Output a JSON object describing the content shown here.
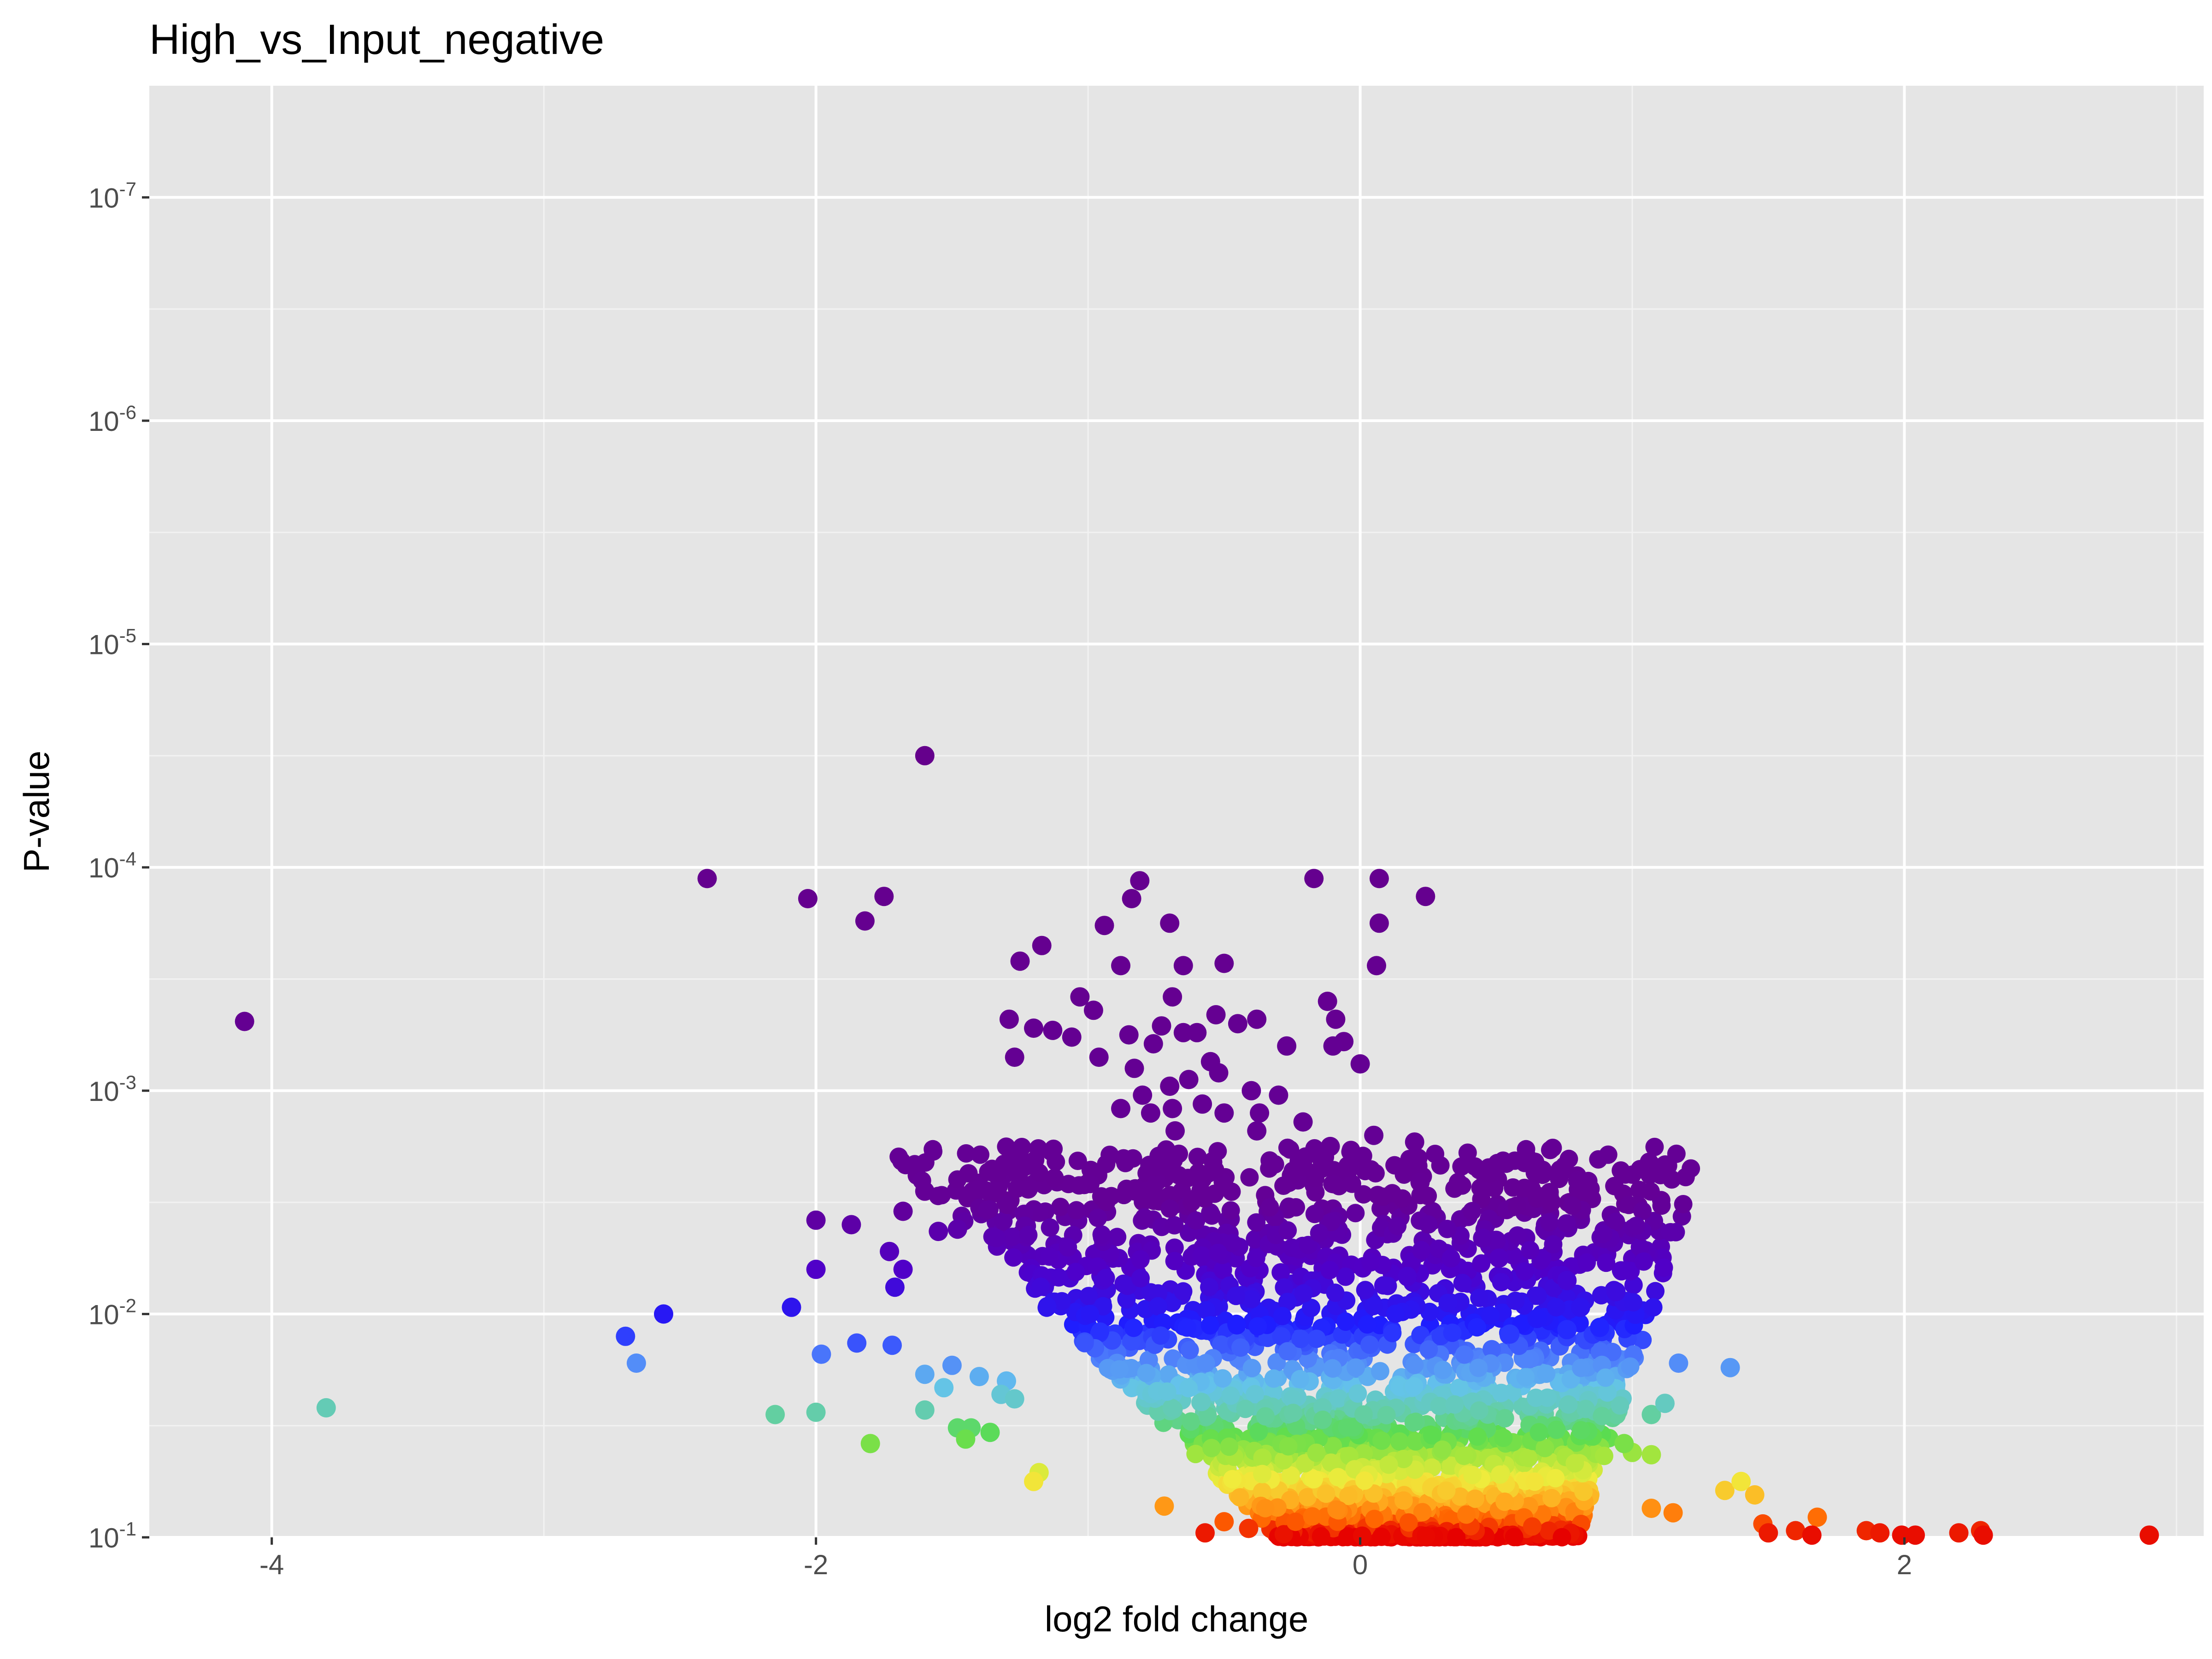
{
  "chart_data": {
    "type": "scatter",
    "title": "High_vs_Input_negative",
    "xlabel": "log2 fold change",
    "ylabel": "P-value",
    "xlim": [
      -4.45,
      3.1
    ],
    "ylim": [
      1.0,
      7.5
    ],
    "y_scale": "log10 reversed (-log10 P)",
    "x_ticks": [
      {
        "value": -4,
        "label": "-4"
      },
      {
        "value": -2,
        "label": "-2"
      },
      {
        "value": 0,
        "label": "0"
      },
      {
        "value": 2,
        "label": "2"
      }
    ],
    "y_ticks": [
      {
        "value": 1,
        "base": "10",
        "exp": "-1"
      },
      {
        "value": 2,
        "base": "10",
        "exp": "-2"
      },
      {
        "value": 3,
        "base": "10",
        "exp": "-3"
      },
      {
        "value": 4,
        "base": "10",
        "exp": "-4"
      },
      {
        "value": 5,
        "base": "10",
        "exp": "-5"
      },
      {
        "value": 6,
        "base": "10",
        "exp": "-6"
      },
      {
        "value": 7,
        "base": "10",
        "exp": "-7"
      }
    ],
    "grid": true,
    "legend": "none",
    "color_scale": "rainbow by significance (red = least significant, purple = most significant)",
    "colors": {
      "panel_background": "#e5e5e5",
      "grid_major": "#ffffff",
      "grid_minor": "#f2f2f2",
      "tick_text": "#4d4d4d"
    },
    "series": [
      {
        "values": [
          {
            "x": -1.6,
            "y": 4.5
          },
          {
            "x": -4.1,
            "y": 3.31
          },
          {
            "x": -2.4,
            "y": 3.95
          },
          {
            "x": -2.03,
            "y": 3.86
          },
          {
            "x": -1.75,
            "y": 3.87
          },
          {
            "x": -1.82,
            "y": 3.76
          },
          {
            "x": -1.17,
            "y": 3.65
          },
          {
            "x": -0.94,
            "y": 3.74
          },
          {
            "x": -0.81,
            "y": 3.94
          },
          {
            "x": -0.84,
            "y": 3.86
          },
          {
            "x": -0.7,
            "y": 3.75
          },
          {
            "x": -0.17,
            "y": 3.95
          },
          {
            "x": 0.07,
            "y": 3.95
          },
          {
            "x": 0.24,
            "y": 3.87
          },
          {
            "x": 0.07,
            "y": 3.75
          },
          {
            "x": 0.06,
            "y": 3.56
          },
          {
            "x": -0.5,
            "y": 3.57
          },
          {
            "x": -0.65,
            "y": 3.56
          },
          {
            "x": -1.25,
            "y": 3.58
          },
          {
            "x": -0.88,
            "y": 3.56
          },
          {
            "x": -0.69,
            "y": 3.42
          },
          {
            "x": -0.12,
            "y": 3.4
          },
          {
            "x": -1.03,
            "y": 3.42
          },
          {
            "x": -0.98,
            "y": 3.36
          },
          {
            "x": -0.53,
            "y": 3.34
          },
          {
            "x": -0.38,
            "y": 3.32
          },
          {
            "x": -0.65,
            "y": 3.26
          },
          {
            "x": -0.76,
            "y": 3.21
          },
          {
            "x": -0.09,
            "y": 3.32
          },
          {
            "x": -0.06,
            "y": 3.22
          },
          {
            "x": -1.29,
            "y": 3.32
          },
          {
            "x": -1.2,
            "y": 3.28
          },
          {
            "x": -1.13,
            "y": 3.27
          },
          {
            "x": -1.06,
            "y": 3.24
          },
          {
            "x": -0.85,
            "y": 3.25
          },
          {
            "x": -0.73,
            "y": 3.29
          },
          {
            "x": -0.6,
            "y": 3.26
          },
          {
            "x": -0.45,
            "y": 3.3
          },
          {
            "x": -0.27,
            "y": 3.2
          },
          {
            "x": -0.1,
            "y": 3.2
          },
          {
            "x": -1.27,
            "y": 3.15
          },
          {
            "x": -0.96,
            "y": 3.15
          },
          {
            "x": -0.55,
            "y": 3.13
          },
          {
            "x": 0.0,
            "y": 3.12
          },
          {
            "x": -0.3,
            "y": 2.98
          },
          {
            "x": -0.8,
            "y": 2.98
          },
          {
            "x": -0.58,
            "y": 2.94
          },
          {
            "x": -0.69,
            "y": 2.92
          },
          {
            "x": -0.77,
            "y": 2.9
          },
          {
            "x": -0.5,
            "y": 2.9
          },
          {
            "x": -0.88,
            "y": 2.92
          },
          {
            "x": -0.37,
            "y": 2.9
          },
          {
            "x": -0.63,
            "y": 3.05
          },
          {
            "x": -0.83,
            "y": 3.1
          },
          {
            "x": -0.52,
            "y": 3.08
          },
          {
            "x": -0.7,
            "y": 3.02
          },
          {
            "x": -0.4,
            "y": 3.0
          },
          {
            "x": -0.21,
            "y": 2.86
          },
          {
            "x": -0.11,
            "y": 2.75
          },
          {
            "x": 0.05,
            "y": 2.8
          },
          {
            "x": -0.68,
            "y": 2.82
          },
          {
            "x": -0.38,
            "y": 2.82
          },
          {
            "x": -0.75,
            "y": 2.66
          },
          {
            "x": -0.21,
            "y": 2.66
          },
          {
            "x": 0.2,
            "y": 2.77
          },
          {
            "x": 0.22,
            "y": 2.59
          },
          {
            "x": -1.28,
            "y": 2.72
          },
          {
            "x": -1.25,
            "y": 2.67
          },
          {
            "x": -1.22,
            "y": 2.56
          },
          {
            "x": -1.6,
            "y": 2.55
          },
          {
            "x": -1.68,
            "y": 2.46
          },
          {
            "x": -2.0,
            "y": 2.42
          },
          {
            "x": -1.87,
            "y": 2.4
          },
          {
            "x": -1.55,
            "y": 2.37
          },
          {
            "x": -1.48,
            "y": 2.38
          },
          {
            "x": -1.73,
            "y": 2.28
          },
          {
            "x": -1.68,
            "y": 2.2
          },
          {
            "x": -2.0,
            "y": 2.2
          },
          {
            "x": -1.71,
            "y": 2.12
          },
          {
            "x": -2.09,
            "y": 2.03
          },
          {
            "x": 0.5,
            "y": 2.33
          },
          {
            "x": 0.51,
            "y": 2.25
          },
          {
            "x": 0.45,
            "y": 2.34
          },
          {
            "x": 0.94,
            "y": 2.1
          },
          {
            "x": 0.76,
            "y": 2.15
          },
          {
            "x": 0.81,
            "y": 2.03
          },
          {
            "x": 0.65,
            "y": 1.98
          },
          {
            "x": -2.7,
            "y": 1.9
          },
          {
            "x": -2.56,
            "y": 2.0
          },
          {
            "x": -2.66,
            "y": 1.78
          },
          {
            "x": -1.85,
            "y": 1.87
          },
          {
            "x": -1.72,
            "y": 1.86
          },
          {
            "x": -1.98,
            "y": 1.82
          },
          {
            "x": 0.88,
            "y": 1.94
          },
          {
            "x": 0.76,
            "y": 1.93
          },
          {
            "x": 1.17,
            "y": 1.78
          },
          {
            "x": 1.36,
            "y": 1.76
          },
          {
            "x": 0.55,
            "y": 1.91
          },
          {
            "x": -1.5,
            "y": 1.77
          },
          {
            "x": -1.6,
            "y": 1.73
          },
          {
            "x": -1.4,
            "y": 1.72
          },
          {
            "x": -1.3,
            "y": 1.7
          },
          {
            "x": -1.53,
            "y": 1.67
          },
          {
            "x": -3.8,
            "y": 1.58
          },
          {
            "x": -2.15,
            "y": 1.55
          },
          {
            "x": -2.0,
            "y": 1.56
          },
          {
            "x": -1.6,
            "y": 1.57
          },
          {
            "x": -1.48,
            "y": 1.49
          },
          {
            "x": -1.43,
            "y": 1.49
          },
          {
            "x": -1.32,
            "y": 1.64
          },
          {
            "x": -1.27,
            "y": 1.62
          },
          {
            "x": 1.07,
            "y": 1.55
          },
          {
            "x": 1.12,
            "y": 1.6
          },
          {
            "x": -1.8,
            "y": 1.42
          },
          {
            "x": -1.45,
            "y": 1.44
          },
          {
            "x": -1.36,
            "y": 1.47
          },
          {
            "x": 1.0,
            "y": 1.38
          },
          {
            "x": 1.07,
            "y": 1.37
          },
          {
            "x": 0.97,
            "y": 1.42
          },
          {
            "x": -1.18,
            "y": 1.29
          },
          {
            "x": -1.2,
            "y": 1.25
          },
          {
            "x": 1.34,
            "y": 1.21
          },
          {
            "x": 1.4,
            "y": 1.25
          },
          {
            "x": 1.45,
            "y": 1.19
          },
          {
            "x": -0.72,
            "y": 1.14
          },
          {
            "x": 1.07,
            "y": 1.13
          },
          {
            "x": 1.15,
            "y": 1.11
          },
          {
            "x": 1.68,
            "y": 1.09
          },
          {
            "x": -0.5,
            "y": 1.07
          },
          {
            "x": -0.41,
            "y": 1.04
          },
          {
            "x": 1.48,
            "y": 1.06
          },
          {
            "x": 1.6,
            "y": 1.03
          },
          {
            "x": -0.57,
            "y": 1.02
          },
          {
            "x": 1.5,
            "y": 1.02
          },
          {
            "x": 1.66,
            "y": 1.01
          },
          {
            "x": 1.86,
            "y": 1.03
          },
          {
            "x": 1.91,
            "y": 1.02
          },
          {
            "x": 1.99,
            "y": 1.01
          },
          {
            "x": 2.04,
            "y": 1.01
          },
          {
            "x": 2.2,
            "y": 1.02
          },
          {
            "x": 2.28,
            "y": 1.03
          },
          {
            "x": 2.29,
            "y": 1.01
          },
          {
            "x": 2.9,
            "y": 1.01
          }
        ]
      }
    ]
  }
}
